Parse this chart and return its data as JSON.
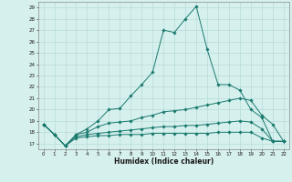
{
  "xlabel": "Humidex (Indice chaleur)",
  "background_color": "#d6f0ee",
  "grid_color": "#b0d8d4",
  "line_color": "#1a7a6e",
  "xlim": [
    -0.5,
    22.5
  ],
  "ylim": [
    16.5,
    29.5
  ],
  "yticks": [
    17,
    18,
    19,
    20,
    21,
    22,
    23,
    24,
    25,
    26,
    27,
    28,
    29
  ],
  "xticks": [
    0,
    1,
    2,
    3,
    4,
    5,
    6,
    7,
    8,
    9,
    10,
    11,
    12,
    13,
    14,
    15,
    16,
    17,
    18,
    19,
    20,
    21,
    22
  ],
  "lines": [
    [
      18.7,
      17.8,
      16.8,
      17.8,
      18.3,
      19.0,
      20.0,
      20.1,
      21.2,
      22.2,
      23.3,
      27.0,
      26.8,
      28.0,
      29.1,
      25.3,
      22.2,
      22.2,
      21.7,
      20.0,
      19.3,
      17.2,
      17.2
    ],
    [
      18.7,
      17.8,
      16.8,
      17.8,
      18.0,
      18.5,
      18.8,
      18.9,
      19.0,
      19.3,
      19.5,
      19.8,
      19.9,
      20.0,
      20.2,
      20.4,
      20.6,
      20.8,
      21.0,
      20.8,
      19.5,
      18.7,
      17.2
    ],
    [
      18.7,
      17.8,
      16.8,
      17.6,
      17.8,
      17.9,
      18.0,
      18.1,
      18.2,
      18.3,
      18.4,
      18.5,
      18.5,
      18.6,
      18.6,
      18.7,
      18.8,
      18.9,
      19.0,
      18.9,
      18.3,
      17.2,
      17.2
    ],
    [
      18.7,
      17.8,
      16.8,
      17.5,
      17.6,
      17.7,
      17.7,
      17.8,
      17.8,
      17.8,
      17.9,
      17.9,
      17.9,
      17.9,
      17.9,
      17.9,
      18.0,
      18.0,
      18.0,
      18.0,
      17.5,
      17.2,
      17.2
    ]
  ]
}
